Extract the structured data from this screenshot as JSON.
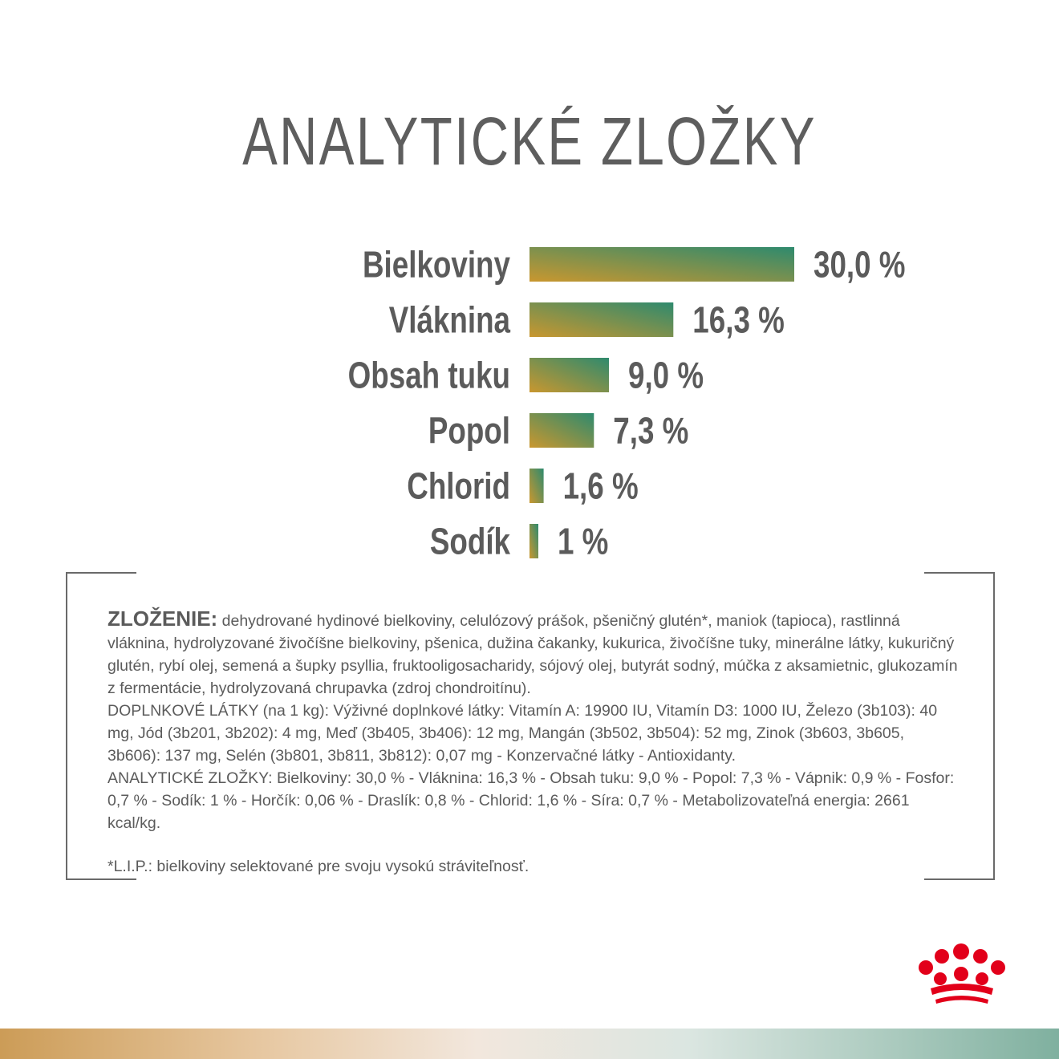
{
  "title": "ANALYTICKÉ ZLOŽKY",
  "chart_data": {
    "type": "bar",
    "orientation": "horizontal",
    "categories": [
      "Bielkoviny",
      "Vláknina",
      "Obsah tuku",
      "Popol",
      "Chlorid",
      "Sodík"
    ],
    "values": [
      30.0,
      16.3,
      9.0,
      7.3,
      1.6,
      1
    ],
    "value_labels": [
      "30,0 %",
      "16,3 %",
      "9,0 %",
      "7,3 %",
      "1,6 %",
      "1 %"
    ],
    "unit": "%",
    "colors": {
      "gradient_start": "#c9972f",
      "gradient_end": "#2e8a6e"
    }
  },
  "composition": {
    "heading": "ZLOŽENIE:",
    "ingredients": "dehydrované hydinové bielkoviny, celulózový prášok, pšeničný glutén*, maniok (tapioca), rastlinná vláknina, hydrolyzované živočíšne bielkoviny, pšenica, dužina čakanky, kukurica, živočíšne tuky, minerálne látky, kukuričný glutén, rybí olej, semená a šupky psyllia, fruktooligosacharidy, sójový olej, butyrát sodný, múčka z aksamietnic, glukozamín z fermentácie, hydrolyzovaná chrupavka (zdroj chondroitínu).",
    "additives": "DOPLNKOVÉ LÁTKY (na 1 kg): Výživné doplnkové látky: Vitamín A: 19900 IU, Vitamín D3: 1000 IU, Železo (3b103): 40 mg, Jód (3b201, 3b202): 4 mg, Meď (3b405, 3b406): 12 mg, Mangán (3b502, 3b504): 52 mg, Zinok (3b603, 3b605, 3b606): 137 mg, Selén (3b801, 3b811, 3b812): 0,07 mg - Konzervačné látky - Antioxidanty.",
    "analytics": "ANALYTICKÉ ZLOŽKY: Bielkoviny: 30,0 % - Vláknina: 16,3 % - Obsah tuku: 9,0 % - Popol: 7,3 % - Vápnik: 0,9 % - Fosfor: 0,7 % - Sodík: 1 % - Horčík: 0,06 % - Draslík: 0,8 % - Chlorid: 1,6 % - Síra: 0,7 % - Metabolizovateľná energia: 2661 kcal/kg.",
    "footnote": "*L.I.P.: bielkoviny selektované pre svoju vysokú stráviteľnosť."
  },
  "logo": {
    "icon": "royal-canin-crown-icon",
    "color": "#e2001a"
  },
  "band_colors": [
    "#cc9c57",
    "#f2e7dd",
    "#7fb09f"
  ]
}
